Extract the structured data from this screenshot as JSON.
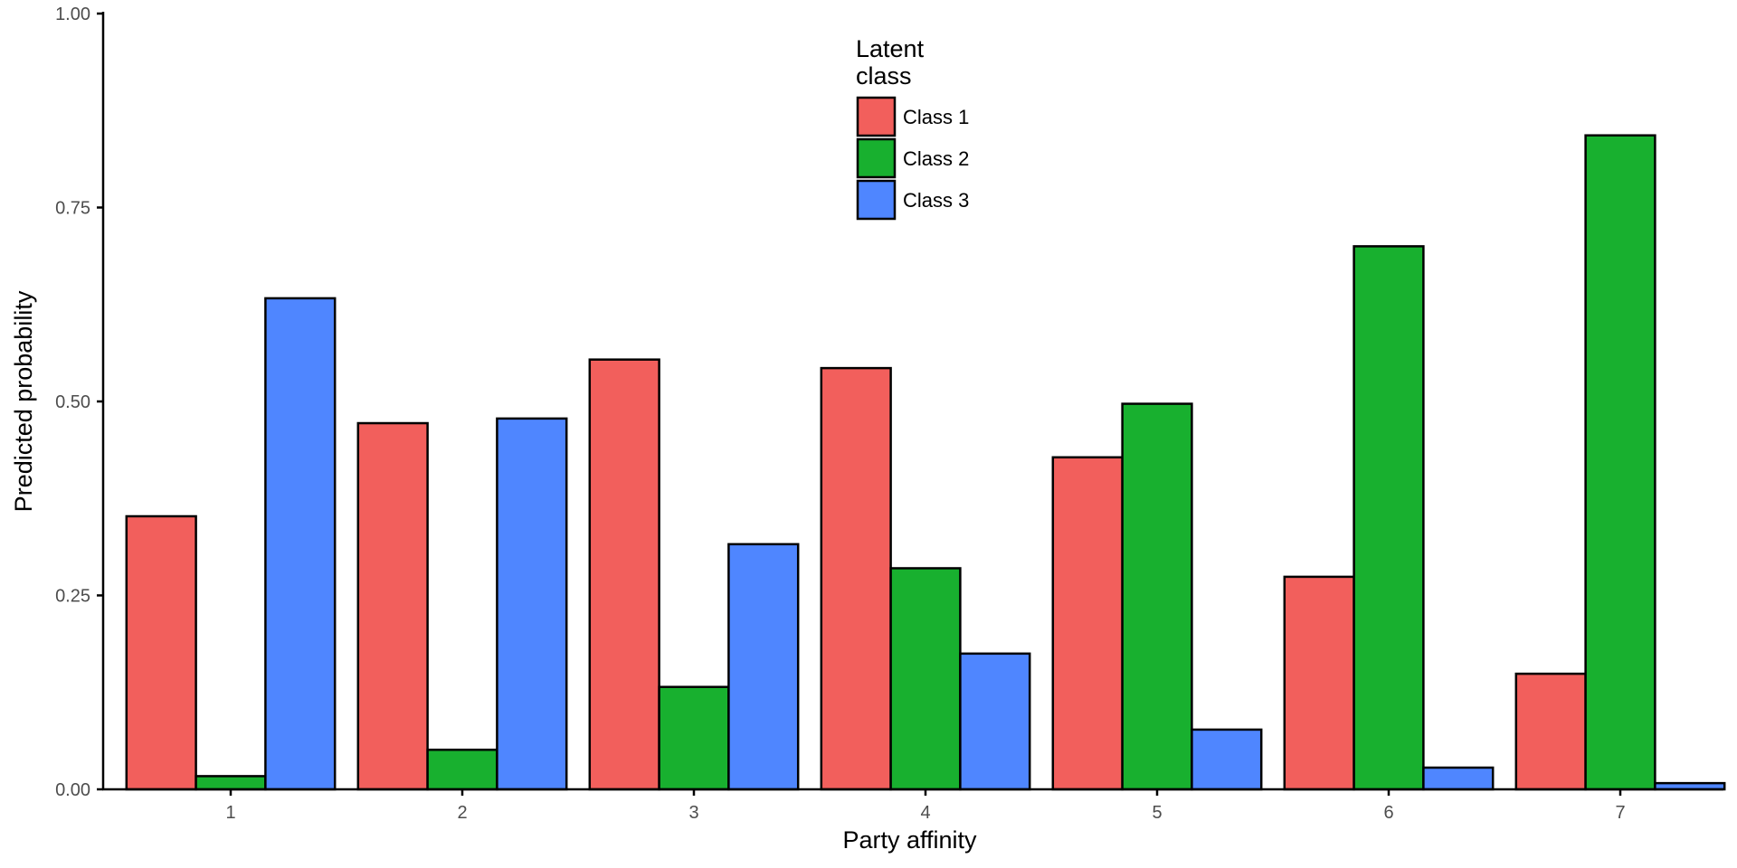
{
  "chart_data": {
    "type": "bar",
    "xlabel": "Party affinity",
    "ylabel": "Predicted probability",
    "categories": [
      "1",
      "2",
      "3",
      "4",
      "5",
      "6",
      "7"
    ],
    "ylim": [
      0,
      1
    ],
    "yticks": [
      "0.00",
      "0.25",
      "0.50",
      "0.75",
      "1.00"
    ],
    "grid": false,
    "legend": {
      "title_lines": [
        "Latent",
        "class"
      ],
      "placement": "top-center"
    },
    "series": [
      {
        "name": "Class 1",
        "color": "#F25F5C",
        "values": [
          0.352,
          0.472,
          0.554,
          0.543,
          0.428,
          0.274,
          0.149
        ]
      },
      {
        "name": "Class 2",
        "color": "#18B02F",
        "values": [
          0.017,
          0.051,
          0.132,
          0.285,
          0.497,
          0.7,
          0.843
        ]
      },
      {
        "name": "Class 3",
        "color": "#4F86FF",
        "values": [
          0.633,
          0.478,
          0.316,
          0.175,
          0.077,
          0.028,
          0.008
        ]
      }
    ]
  }
}
